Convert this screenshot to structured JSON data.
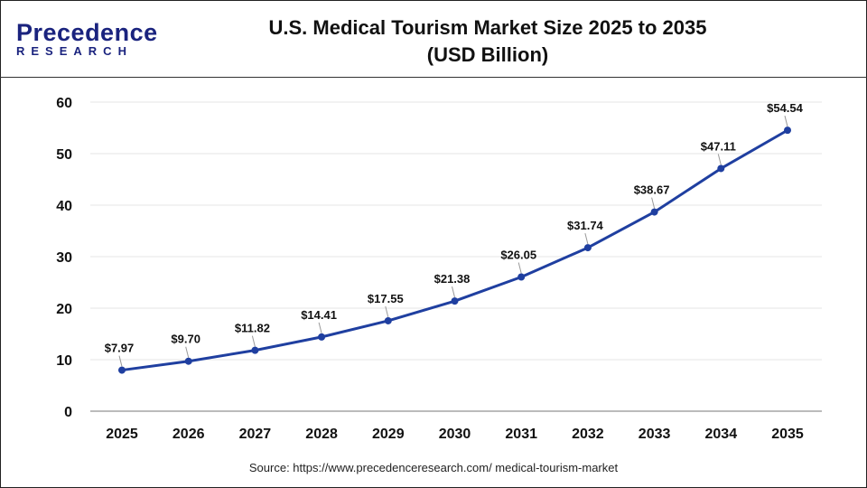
{
  "logo": {
    "line1": "Precedence",
    "line2": "RESEARCH"
  },
  "title_line1": "U.S. Medical Tourism Market Size 2025 to 2035",
  "title_line2": "(USD Billion)",
  "source": "Source: https://www.precedenceresearch.com/ medical-tourism-market",
  "chart_data": {
    "type": "line",
    "title": "U.S. Medical Tourism Market Size 2025 to 2035 (USD Billion)",
    "categories": [
      "2025",
      "2026",
      "2027",
      "2028",
      "2029",
      "2030",
      "2031",
      "2032",
      "2033",
      "2034",
      "2035"
    ],
    "values": [
      7.97,
      9.7,
      11.82,
      14.41,
      17.55,
      21.38,
      26.05,
      31.74,
      38.67,
      47.11,
      54.54
    ],
    "data_labels": [
      "$7.97",
      "$9.70",
      "$11.82",
      "$14.41",
      "$17.55",
      "$21.38",
      "$26.05",
      "$31.74",
      "$38.67",
      "$47.11",
      "$54.54"
    ],
    "ylim": [
      0,
      60
    ],
    "yticks": [
      0,
      10,
      20,
      30,
      40,
      50,
      60
    ],
    "grid": true,
    "line_color": "#1f3fa0"
  }
}
